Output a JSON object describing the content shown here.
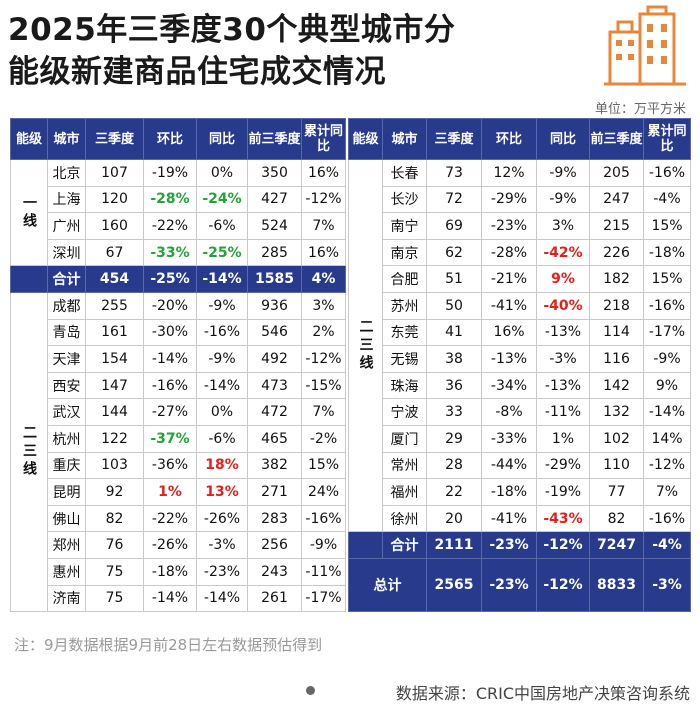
{
  "title": [
    "2025年三季度30个典型城市分",
    "能级新建商品住宅成交情况"
  ],
  "unit": "单位：万平方米",
  "left_table": {
    "header": [
      "能级",
      "城市",
      "三季度",
      "环比",
      "同比",
      "前三季度",
      "累计同比"
    ],
    "tier1": {
      "label": "一线",
      "rows": [
        [
          "北京",
          "107",
          "-19%",
          "0%",
          "350",
          "16%"
        ],
        [
          "上海",
          "120",
          "-28%",
          "-24%",
          "427",
          "-12%"
        ],
        [
          "广州",
          "160",
          "-22%",
          "-6%",
          "524",
          "7%"
        ],
        [
          "深圳",
          "67",
          "-33%",
          "-25%",
          "285",
          "16%"
        ]
      ]
    },
    "tier1_total": [
      "合计",
      "454",
      "-25%",
      "-14%",
      "1585",
      "4%"
    ],
    "tier23": {
      "label": "二三线",
      "rows": [
        [
          "成都",
          "255",
          "-20%",
          "-9%",
          "936",
          "3%"
        ],
        [
          "青岛",
          "161",
          "-30%",
          "-16%",
          "546",
          "2%"
        ],
        [
          "天津",
          "154",
          "-14%",
          "-9%",
          "492",
          "-12%"
        ],
        [
          "西安",
          "147",
          "-16%",
          "-14%",
          "473",
          "-15%"
        ],
        [
          "武汉",
          "144",
          "-27%",
          "0%",
          "472",
          "7%"
        ],
        [
          "杭州",
          "122",
          "-37%",
          "-6%",
          "465",
          "-2%"
        ],
        [
          "重庆",
          "103",
          "-36%",
          "18%",
          "382",
          "15%"
        ],
        [
          "昆明",
          "92",
          "1%",
          "13%",
          "271",
          "24%"
        ],
        [
          "佛山",
          "82",
          "-22%",
          "-26%",
          "283",
          "-16%"
        ],
        [
          "郑州",
          "76",
          "-26%",
          "-3%",
          "256",
          "-9%"
        ],
        [
          "惠州",
          "75",
          "-18%",
          "-23%",
          "243",
          "-11%"
        ],
        [
          "济南",
          "75",
          "-14%",
          "-14%",
          "261",
          "-17%"
        ]
      ]
    }
  },
  "right_table": {
    "header": [
      "能级",
      "城市",
      "三季度",
      "环比",
      "同比",
      "前三季度",
      "累计同比"
    ],
    "tier23": {
      "label": "二三线",
      "rows": [
        [
          "长春",
          "73",
          "12%",
          "-9%",
          "205",
          "-16%"
        ],
        [
          "长沙",
          "72",
          "-29%",
          "-9%",
          "247",
          "-4%"
        ],
        [
          "南宁",
          "69",
          "-23%",
          "3%",
          "215",
          "15%"
        ],
        [
          "南京",
          "62",
          "-28%",
          "-42%",
          "226",
          "-18%"
        ],
        [
          "合肥",
          "51",
          "-21%",
          "9%",
          "182",
          "15%"
        ],
        [
          "苏州",
          "50",
          "-41%",
          "-40%",
          "218",
          "-16%"
        ],
        [
          "东莞",
          "41",
          "16%",
          "-13%",
          "114",
          "-17%"
        ],
        [
          "无锡",
          "38",
          "-13%",
          "-3%",
          "116",
          "-9%"
        ],
        [
          "珠海",
          "36",
          "-34%",
          "-13%",
          "142",
          "9%"
        ],
        [
          "宁波",
          "33",
          "-8%",
          "-11%",
          "132",
          "-14%"
        ],
        [
          "厦门",
          "29",
          "-33%",
          "1%",
          "102",
          "14%"
        ],
        [
          "常州",
          "28",
          "-44%",
          "-29%",
          "110",
          "-12%"
        ],
        [
          "福州",
          "22",
          "-18%",
          "-19%",
          "77",
          "7%"
        ],
        [
          "徐州",
          "20",
          "-41%",
          "-43%",
          "82",
          "-16%"
        ]
      ]
    },
    "tier23_total": [
      "合计",
      "2111",
      "-23%",
      "-12%",
      "7247",
      "-4%"
    ],
    "grand_total": [
      "总计",
      "2565",
      "-23%",
      "-12%",
      "8833",
      "-3%"
    ]
  },
  "note": "注：9月数据根据9月前28日左右数据预估得到",
  "source": "数据来源：CRIC中国房地产决策咨询系统"
}
